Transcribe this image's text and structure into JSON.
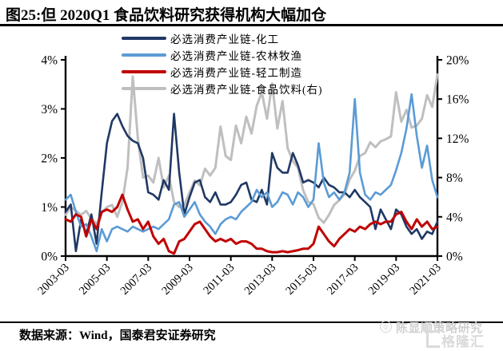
{
  "title": "图25:但 2020Q1 食品饮料研究获得机构大幅加仓",
  "footer": {
    "source": "数据来源：Wind，国泰君安证券研究"
  },
  "watermark": {
    "seal": "◎",
    "text": "陈显顺策略研究",
    "logo": "格隆汇"
  },
  "chart_data": {
    "type": "line",
    "x_start": "2003-03",
    "x_step_months": 3,
    "x_ticks": [
      "2003-03",
      "2005-03",
      "2007-03",
      "2009-03",
      "2011-03",
      "2013-03",
      "2015-03",
      "2017-03",
      "2019-03",
      "2021-03"
    ],
    "left_axis": {
      "min": 0,
      "max": 4,
      "ticks": [
        "0%",
        "1%",
        "2%",
        "3%",
        "4%"
      ]
    },
    "right_axis": {
      "min": 0,
      "max": 20,
      "ticks": [
        "0%",
        "4%",
        "8%",
        "12%",
        "16%",
        "20%"
      ]
    },
    "grid": false,
    "legend_position": "top-center",
    "series": [
      {
        "name": "必选消费产业链-化工",
        "axis": "left",
        "color": "#1f3864",
        "width": 2.6,
        "values": [
          0.9,
          1.05,
          0.1,
          0.75,
          0.45,
          0.85,
          0.25,
          1.3,
          2.3,
          2.75,
          2.9,
          2.65,
          2.45,
          2.35,
          2.3,
          2.0,
          1.3,
          1.25,
          1.15,
          1.55,
          1.35,
          2.9,
          1.7,
          0.85,
          1.2,
          1.5,
          1.55,
          1.2,
          1.1,
          1.3,
          1.05,
          1.05,
          1.1,
          1.25,
          1.45,
          1.5,
          1.15,
          1.1,
          1.35,
          1.05,
          2.1,
          1.8,
          1.7,
          1.7,
          2.1,
          1.85,
          1.5,
          1.55,
          1.5,
          1.4,
          1.6,
          1.45,
          1.4,
          1.3,
          1.3,
          1.2,
          1.35,
          1.2,
          1.1,
          1.0,
          0.55,
          0.95,
          0.75,
          0.55,
          0.95,
          0.85,
          0.6,
          0.45,
          0.55,
          0.35,
          0.5,
          0.45,
          0.7
        ]
      },
      {
        "name": "必选消费产业链-农林牧渔",
        "axis": "left",
        "color": "#5b9bd5",
        "width": 2.6,
        "values": [
          1.15,
          1.25,
          0.9,
          0.6,
          0.65,
          0.4,
          0.1,
          0.55,
          0.3,
          0.55,
          0.6,
          0.55,
          0.5,
          0.6,
          0.55,
          0.5,
          0.55,
          0.6,
          0.55,
          0.65,
          0.75,
          1.05,
          1.1,
          0.8,
          0.95,
          1.1,
          0.85,
          0.7,
          0.6,
          0.45,
          0.65,
          0.75,
          0.8,
          0.75,
          0.9,
          1.0,
          1.1,
          1.35,
          1.2,
          1.3,
          1.0,
          1.1,
          1.3,
          1.25,
          1.05,
          1.3,
          1.2,
          1.0,
          1.15,
          2.3,
          1.5,
          1.2,
          1.3,
          1.15,
          1.3,
          1.7,
          3.2,
          1.7,
          1.25,
          1.15,
          1.3,
          1.25,
          1.35,
          1.45,
          1.75,
          2.1,
          2.6,
          3.3,
          2.45,
          1.8,
          2.25,
          1.55,
          1.2
        ]
      },
      {
        "name": "必选消费产业链-轻工制造",
        "axis": "left",
        "color": "#c00000",
        "width": 3,
        "values": [
          0.75,
          0.7,
          0.85,
          0.8,
          0.4,
          0.75,
          0.55,
          0.9,
          0.95,
          0.9,
          1.0,
          1.25,
          0.95,
          0.7,
          0.75,
          0.55,
          0.7,
          0.4,
          0.25,
          0.35,
          0.1,
          0.05,
          0.3,
          0.35,
          0.5,
          0.65,
          0.7,
          0.55,
          0.4,
          0.3,
          0.35,
          0.3,
          0.35,
          0.25,
          0.3,
          0.3,
          0.25,
          0.15,
          0.15,
          0.1,
          0.08,
          0.08,
          0.1,
          0.08,
          0.1,
          0.12,
          0.15,
          0.15,
          0.25,
          0.6,
          0.45,
          0.3,
          0.2,
          0.35,
          0.45,
          0.55,
          0.5,
          0.6,
          0.55,
          0.65,
          0.7,
          0.65,
          0.7,
          0.7,
          0.85,
          0.9,
          0.7,
          0.55,
          0.75,
          0.6,
          0.7,
          0.55,
          0.6
        ]
      },
      {
        "name": "必选消费产业链-食品饮料(右)",
        "axis": "right",
        "color": "#bfbfbf",
        "width": 3,
        "values": [
          4.2,
          5.0,
          4.6,
          4.2,
          4.6,
          3.8,
          3.3,
          4.4,
          5.0,
          5.2,
          4.0,
          5.5,
          9.0,
          18.3,
          12.0,
          8.0,
          8.2,
          7.5,
          10.0,
          7.0,
          8.2,
          5.5,
          5.0,
          5.2,
          6.5,
          7.7,
          7.2,
          8.9,
          8.2,
          9.0,
          13.2,
          10.2,
          9.8,
          13.3,
          11.5,
          14.2,
          12.5,
          15.3,
          16.7,
          14.0,
          17.6,
          13.0,
          15.8,
          11.0,
          9.7,
          9.0,
          6.7,
          5.5,
          5.3,
          3.9,
          3.4,
          4.2,
          5.2,
          5.7,
          6.3,
          7.8,
          8.7,
          10.2,
          10.5,
          11.6,
          11.1,
          11.7,
          11.9,
          12.2,
          16.7,
          13.7,
          14.9,
          13.1,
          13.3,
          14.0,
          16.4,
          15.2,
          18.5
        ]
      }
    ]
  }
}
